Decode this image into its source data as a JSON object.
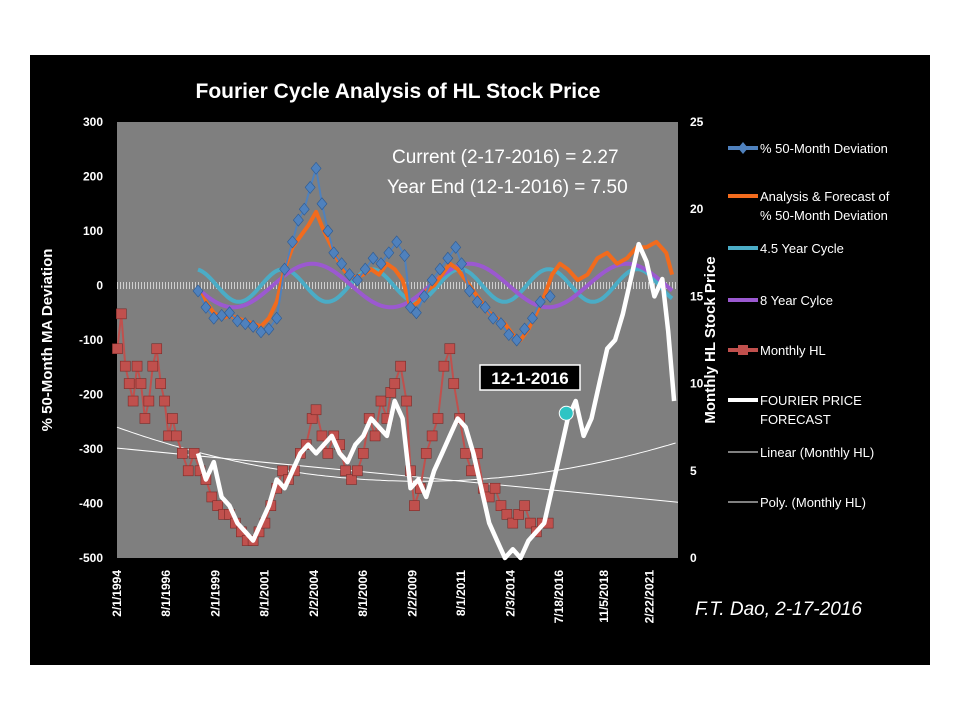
{
  "chart_data": {
    "type": "line",
    "title": "Fourier Cycle Analysis of HL Stock Price",
    "y_left_label": "% 50-Month MA Deviation",
    "y_right_label": "Monthly  HL  Stock Price",
    "y_left_range": [
      -500,
      300
    ],
    "y_left_ticks": [
      "300",
      "200",
      "100",
      "0",
      "-100",
      "-200",
      "-300",
      "-400",
      "-500"
    ],
    "y_right_range": [
      0,
      25
    ],
    "y_right_ticks": [
      "25",
      "20",
      "15",
      "10",
      "5",
      "0"
    ],
    "x_range": [
      1994.08,
      2022.6
    ],
    "x_ticks": [
      "2/1/1994",
      "8/1/1996",
      "2/1/1999",
      "8/1/2001",
      "2/2/2004",
      "8/1/2006",
      "2/2/2009",
      "8/1/2011",
      "2/3/2014",
      "7/18/2016",
      "11/5/2018",
      "2/22/2021"
    ],
    "x_tick_years": [
      1994.08,
      1996.58,
      1999.08,
      2001.58,
      2004.09,
      2006.58,
      2009.09,
      2011.58,
      2014.09,
      2016.55,
      2018.84,
      2021.14
    ],
    "annotations": {
      "current": "Current (2-17-2016)  = 2.27",
      "year_end": "Year End (12-1-2016)  = 7.50",
      "callout": "12-1-2016",
      "callout_point": {
        "x": 2016.92,
        "y": 8.3
      },
      "author": "F.T. Dao, 2-17-2016"
    },
    "series": [
      {
        "name": "% 50-Month  Deviation",
        "axis": "left",
        "color": "#4f81bd",
        "marker": "diamond",
        "x": [
          1998.2,
          1998.6,
          1999.0,
          1999.4,
          1999.8,
          2000.2,
          2000.6,
          2001.0,
          2001.4,
          2001.8,
          2002.2,
          2002.6,
          2003.0,
          2003.3,
          2003.6,
          2003.9,
          2004.2,
          2004.5,
          2004.8,
          2005.1,
          2005.5,
          2005.9,
          2006.3,
          2006.7,
          2007.1,
          2007.5,
          2007.9,
          2008.3,
          2008.7,
          2009.0,
          2009.3,
          2009.7,
          2010.1,
          2010.5,
          2010.9,
          2011.3,
          2011.6,
          2012.0,
          2012.4,
          2012.8,
          2013.2,
          2013.6,
          2014.0,
          2014.4,
          2014.8,
          2015.2,
          2015.6,
          2016.1
        ],
        "y": [
          -10,
          -40,
          -60,
          -55,
          -50,
          -65,
          -70,
          -75,
          -85,
          -80,
          -60,
          30,
          80,
          120,
          140,
          180,
          215,
          150,
          100,
          60,
          40,
          20,
          10,
          30,
          50,
          40,
          60,
          80,
          55,
          -40,
          -50,
          -20,
          10,
          30,
          50,
          70,
          40,
          -10,
          -30,
          -40,
          -60,
          -70,
          -90,
          -100,
          -80,
          -60,
          -30,
          -20
        ]
      },
      {
        "name": "Analysis & Forecast of % 50-Month  Deviation",
        "axis": "left",
        "color": "#f26b1d",
        "marker": "none",
        "x": [
          1998.2,
          1998.6,
          1999.0,
          1999.4,
          1999.8,
          2000.2,
          2000.6,
          2001.0,
          2001.4,
          2001.8,
          2002.2,
          2002.6,
          2003.0,
          2003.4,
          2003.8,
          2004.2,
          2004.6,
          2005.0,
          2005.4,
          2005.8,
          2006.2,
          2006.6,
          2007.0,
          2007.4,
          2007.8,
          2008.2,
          2008.6,
          2009.0,
          2009.4,
          2009.8,
          2010.2,
          2010.6,
          2011.0,
          2011.4,
          2011.8,
          2012.2,
          2012.6,
          2013.0,
          2013.4,
          2013.8,
          2014.2,
          2014.6,
          2015.0,
          2015.4,
          2015.8,
          2016.2,
          2016.6,
          2017.0,
          2017.5,
          2018.0,
          2018.5,
          2019.0,
          2019.5,
          2020.0,
          2020.5,
          2021.0,
          2021.5,
          2022.0,
          2022.3
        ],
        "y": [
          -10,
          -30,
          -50,
          -60,
          -55,
          -60,
          -65,
          -70,
          -75,
          -60,
          -30,
          30,
          70,
          90,
          110,
          135,
          100,
          70,
          40,
          20,
          15,
          20,
          30,
          20,
          40,
          30,
          10,
          -40,
          -30,
          -10,
          0,
          20,
          40,
          30,
          10,
          -10,
          -30,
          -50,
          -60,
          -70,
          -90,
          -100,
          -80,
          -50,
          -20,
          20,
          40,
          30,
          10,
          20,
          50,
          60,
          40,
          50,
          70,
          70,
          80,
          60,
          20
        ]
      },
      {
        "name": "4.5 Year Cycle",
        "axis": "left",
        "color": "#4bacc6",
        "marker": "none",
        "func": "sine",
        "amp": 30,
        "period": 4.5,
        "phase": 1996.9,
        "xstart": 1998.2,
        "xend": 2022.3
      },
      {
        "name": "8 Year Cylce",
        "axis": "left",
        "color": "#9b59d0",
        "marker": "none",
        "func": "sine",
        "amp": 40,
        "period": 8,
        "phase": 2002.0,
        "xstart": 1998.2,
        "xend": 2022.3
      },
      {
        "name": "Monthly  HL",
        "axis": "right",
        "color": "#c0504d",
        "marker": "square",
        "x": [
          1994.1,
          1994.3,
          1994.5,
          1994.7,
          1994.9,
          1995.1,
          1995.3,
          1995.5,
          1995.7,
          1995.9,
          1996.1,
          1996.3,
          1996.5,
          1996.7,
          1996.9,
          1997.1,
          1997.4,
          1997.7,
          1998.0,
          1998.3,
          1998.6,
          1998.9,
          1999.2,
          1999.5,
          1999.8,
          2000.1,
          2000.4,
          2000.7,
          2001.0,
          2001.3,
          2001.6,
          2001.9,
          2002.2,
          2002.5,
          2002.8,
          2003.1,
          2003.4,
          2003.7,
          2004.0,
          2004.2,
          2004.5,
          2004.8,
          2005.1,
          2005.4,
          2005.7,
          2006.0,
          2006.3,
          2006.6,
          2006.9,
          2007.2,
          2007.5,
          2007.8,
          2008.0,
          2008.2,
          2008.5,
          2008.8,
          2009.0,
          2009.2,
          2009.5,
          2009.8,
          2010.1,
          2010.4,
          2010.7,
          2011.0,
          2011.2,
          2011.5,
          2011.8,
          2012.1,
          2012.4,
          2012.7,
          2013.0,
          2013.3,
          2013.6,
          2013.9,
          2014.2,
          2014.5,
          2014.8,
          2015.1,
          2015.4,
          2015.7,
          2016.0
        ],
        "y": [
          12,
          14,
          11,
          10,
          9,
          11,
          10,
          8,
          9,
          11,
          12,
          10,
          9,
          7,
          8,
          7,
          6,
          5,
          6,
          5,
          4.5,
          3.5,
          3,
          2.5,
          2.5,
          2,
          1.5,
          1,
          1,
          1.5,
          2,
          3,
          4,
          5,
          4.5,
          5,
          6,
          6.5,
          8,
          8.5,
          7,
          6,
          7,
          6.5,
          5,
          4.5,
          5,
          6,
          8,
          7,
          9,
          8,
          9.5,
          10,
          11,
          9,
          5,
          3,
          4,
          6,
          7,
          8,
          11,
          12,
          10,
          8,
          6,
          5,
          6,
          4,
          3.5,
          4,
          3,
          2.5,
          2,
          2.5,
          3,
          2,
          1.5,
          2,
          2
        ]
      },
      {
        "name": "FOURIER PRICE FORECAST",
        "axis": "right",
        "color": "#ffffff",
        "marker": "none",
        "x": [
          1998.2,
          1998.6,
          1999.0,
          1999.4,
          1999.8,
          2000.2,
          2000.6,
          2001.0,
          2001.4,
          2001.8,
          2002.2,
          2002.6,
          2003.0,
          2003.4,
          2003.8,
          2004.2,
          2004.6,
          2005.0,
          2005.4,
          2005.8,
          2006.2,
          2006.6,
          2007.0,
          2007.4,
          2007.8,
          2008.2,
          2008.6,
          2009.0,
          2009.4,
          2009.8,
          2010.2,
          2010.6,
          2011.0,
          2011.4,
          2011.8,
          2012.2,
          2012.6,
          2013.0,
          2013.4,
          2013.8,
          2014.2,
          2014.6,
          2015.0,
          2015.4,
          2015.8,
          2016.2,
          2016.6,
          2017.0,
          2017.4,
          2017.8,
          2018.2,
          2018.6,
          2019.0,
          2019.4,
          2019.8,
          2020.2,
          2020.6,
          2021.0,
          2021.4,
          2021.8,
          2022.1,
          2022.4
        ],
        "y": [
          6,
          4.5,
          5.5,
          3.5,
          3,
          2,
          1.5,
          1,
          2,
          3,
          4.5,
          4,
          5,
          6,
          6.5,
          6,
          6.5,
          7,
          6,
          5.5,
          6.5,
          7,
          8,
          7.5,
          7,
          9,
          8,
          4,
          4.5,
          3.5,
          5,
          6,
          7,
          8,
          7.5,
          6,
          4,
          2,
          1,
          0,
          0.5,
          0,
          1,
          1.5,
          2,
          4,
          6,
          8,
          9,
          7,
          8,
          10,
          12,
          12.5,
          14,
          16,
          18,
          17,
          15,
          16,
          13,
          9
        ]
      },
      {
        "name": "Linear (Monthly  HL)",
        "axis": "right",
        "color": "#ffffff",
        "marker": "none",
        "thin": true,
        "x": [
          1994.08,
          2022.6
        ],
        "y": [
          6.3,
          3.2
        ]
      },
      {
        "name": "Poly. (Monthly  HL)",
        "axis": "right",
        "color": "#ffffff",
        "marker": "none",
        "thin": true,
        "func": "poly",
        "vertex_x": 2009.5,
        "vertex_y": 4.4,
        "anchor_x": 1994.08,
        "anchor_y": 7.5,
        "xstart": 1994.08,
        "xend": 2022.6
      }
    ]
  }
}
